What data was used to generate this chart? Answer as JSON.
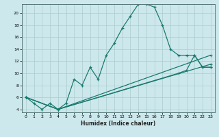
{
  "title": "",
  "xlabel": "Humidex (Indice chaleur)",
  "ylabel": "",
  "bg_color": "#cce8ec",
  "grid_color": "#aacccc",
  "line_color": "#1a7a6e",
  "xlim": [
    -0.5,
    23.5
  ],
  "ylim": [
    3.5,
    21.5
  ],
  "yticks": [
    4,
    6,
    8,
    10,
    12,
    14,
    16,
    18,
    20
  ],
  "xticks": [
    0,
    1,
    2,
    3,
    4,
    5,
    6,
    7,
    8,
    9,
    10,
    11,
    12,
    13,
    14,
    15,
    16,
    17,
    18,
    19,
    20,
    21,
    22,
    23
  ],
  "series": {
    "main": {
      "x": [
        0,
        1,
        2,
        3,
        4,
        5,
        6,
        7,
        8,
        9,
        10,
        11,
        12,
        13,
        14,
        15,
        16,
        17,
        18,
        19,
        20,
        21,
        22,
        23
      ],
      "y": [
        6,
        5,
        4,
        5,
        4,
        5,
        9,
        8,
        11,
        9,
        13,
        15,
        17.5,
        19.5,
        21.5,
        21.5,
        21,
        18,
        14,
        13,
        13,
        13,
        11,
        11
      ]
    },
    "line2": {
      "x": [
        0,
        4,
        19,
        20,
        21,
        22,
        23
      ],
      "y": [
        6,
        4,
        10,
        10.5,
        13,
        11,
        11
      ]
    },
    "line3": {
      "x": [
        0,
        4,
        23
      ],
      "y": [
        6,
        4,
        11.5
      ]
    },
    "line4": {
      "x": [
        0,
        4,
        23
      ],
      "y": [
        6,
        4,
        13
      ]
    }
  }
}
